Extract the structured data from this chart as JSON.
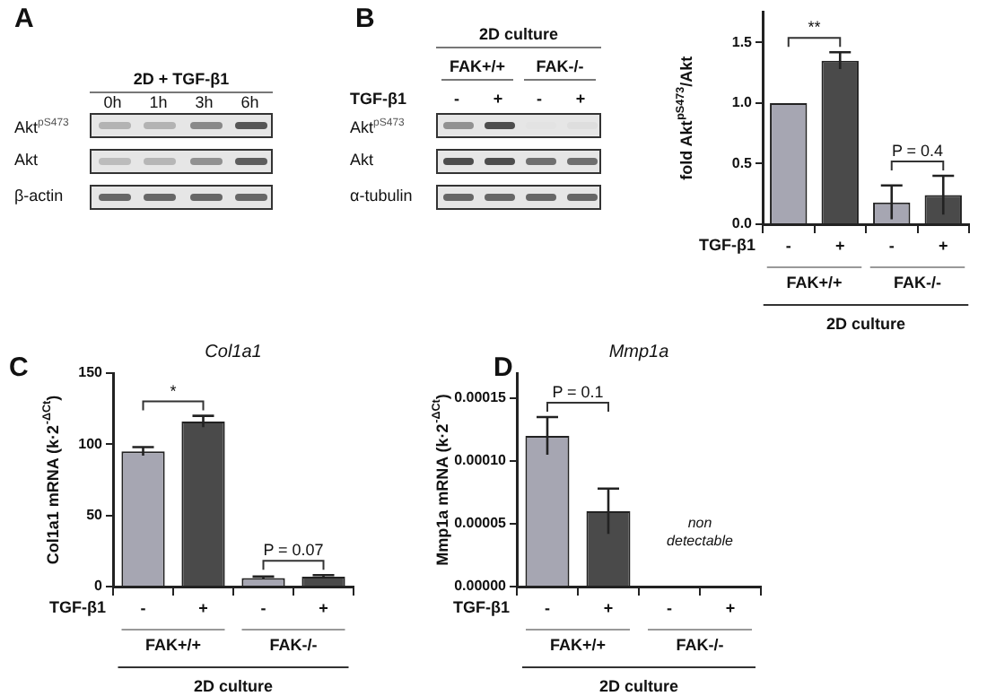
{
  "chart_data": [
    {
      "type": "other",
      "title": "2D + TGF-β1",
      "categories": [
        "0h",
        "1h",
        "3h",
        "6h"
      ],
      "y_categories": [
        "Akt$^{pS473}$",
        "Akt",
        "β-actin"
      ],
      "annotations": [
        "A"
      ]
    },
    {
      "type": "other",
      "title": "2D culture",
      "categories": [
        "-",
        "+",
        "-",
        "+"
      ],
      "y_categories": [
        "Akt$^{pS473}$",
        "Akt",
        "α-tubulin"
      ],
      "annotations": [
        "B",
        "FAK+/+",
        "FAK-/-",
        "TGF-β1"
      ]
    },
    {
      "type": "bar",
      "ylabel": "fold Akt$^{pS473}$/Akt",
      "categories": [
        "-",
        "+",
        "-",
        "+"
      ],
      "values": [
        1.0,
        1.35,
        0.18,
        0.24
      ],
      "colors": [
        "#a6a6b2",
        "#4a4a4a",
        "#a6a6b2",
        "#4a4a4a"
      ],
      "errors": [
        null,
        0.07,
        0.14,
        0.16
      ],
      "ylim": [
        0,
        1.75
      ],
      "yticks": [
        {
          "value": 0,
          "label": "0.0"
        },
        {
          "value": 0.5,
          "label": "0.5"
        },
        {
          "value": 1,
          "label": "1.0"
        },
        {
          "value": 1.5,
          "label": "1.5"
        }
      ],
      "annotations": [
        "FAK+/+",
        "FAK-/-",
        "2D culture",
        "TGF-β1",
        "**",
        "P = 0.4"
      ]
    },
    {
      "type": "bar",
      "title": "Col1a1",
      "ylabel": "Col1a1 mRNA (k·2$^{-ΔCt}$)",
      "categories": [
        "-",
        "+",
        "-",
        "+"
      ],
      "values": [
        95,
        116,
        6,
        7
      ],
      "colors": [
        "#a6a6b2",
        "#4a4a4a",
        "#a6a6b2",
        "#4a4a4a"
      ],
      "errors": [
        3,
        4,
        1,
        1
      ],
      "ylim": [
        0,
        150
      ],
      "yticks": [
        0,
        50,
        100,
        150
      ],
      "annotations": [
        "FAK+/+",
        "FAK-/-",
        "2D culture",
        "TGF-β1",
        "*",
        "P = 0.07",
        "C"
      ]
    },
    {
      "type": "bar",
      "title": "Mmp1a",
      "ylabel": "Mmp1a mRNA (k·2$^{-ΔCt}$)",
      "categories": [
        "-",
        "+",
        "-",
        "+"
      ],
      "values": [
        0.00012,
        6e-05,
        null,
        null
      ],
      "colors": [
        "#a6a6b2",
        "#4a4a4a",
        "#a6a6b2",
        "#4a4a4a"
      ],
      "errors": [
        1.5e-05,
        1.8e-05,
        null,
        null
      ],
      "ylim": [
        0,
        0.00017
      ],
      "yticks": [
        {
          "value": 0,
          "label": "0.00000"
        },
        {
          "value": 5e-05,
          "label": "0.00005"
        },
        {
          "value": 0.0001,
          "label": "0.00010"
        },
        {
          "value": 0.00015,
          "label": "0.00015"
        }
      ],
      "annotations": [
        "FAK+/+",
        "FAK-/-",
        "2D culture",
        "TGF-β1",
        "P = 0.1",
        "D",
        "non detectable"
      ]
    }
  ]
}
